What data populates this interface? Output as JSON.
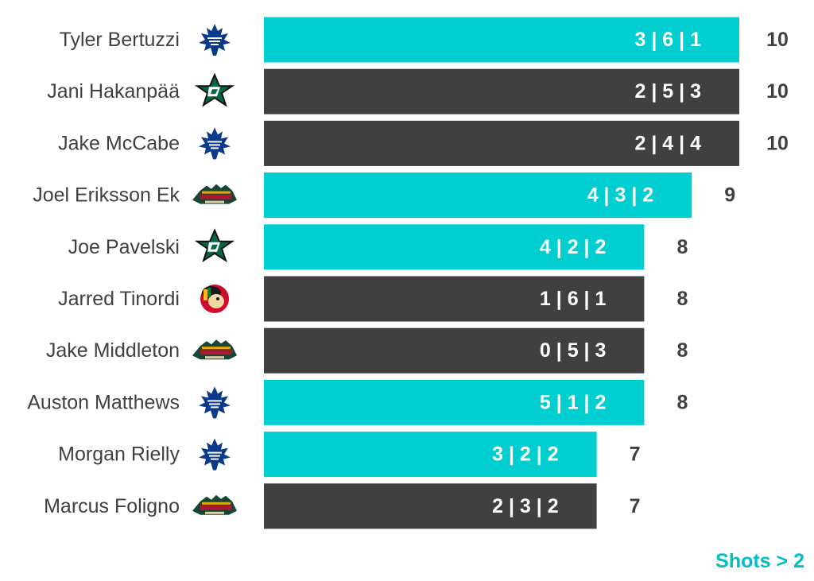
{
  "chart_data": {
    "type": "bar",
    "orientation": "horizontal",
    "categories": [
      "Tyler Bertuzzi",
      "Jani Hakanpää",
      "Jake McCabe",
      "Joel Eriksson Ek",
      "Joe Pavelski",
      "Jarred Tinordi",
      "Jake Middleton",
      "Auston Matthews",
      "Morgan Rielly",
      "Marcus Foligno"
    ],
    "teams": [
      "maple-leafs-logo",
      "stars-logo",
      "maple-leafs-logo",
      "wild-logo",
      "stars-logo",
      "blackhawks-logo",
      "wild-logo",
      "maple-leafs-logo",
      "maple-leafs-logo",
      "wild-logo"
    ],
    "values": [
      10,
      10,
      10,
      9,
      8,
      8,
      8,
      8,
      7,
      7
    ],
    "segment_labels": [
      "3 | 6 | 1",
      "2 | 5 | 3",
      "2 | 4 | 4",
      "4 | 3 | 2",
      "4 | 2 | 2",
      "1 | 6 | 1",
      "0 | 5 | 3",
      "5 | 1 | 2",
      "3 | 2 | 2",
      "2 | 3 | 2"
    ],
    "highlighted": [
      true,
      false,
      false,
      true,
      true,
      false,
      false,
      true,
      true,
      false
    ],
    "xlim": [
      0,
      10
    ],
    "colors": {
      "highlight": "#00CED1",
      "normal": "#404040",
      "note": "#00BFC4"
    },
    "annotation": "Shots > 2"
  }
}
